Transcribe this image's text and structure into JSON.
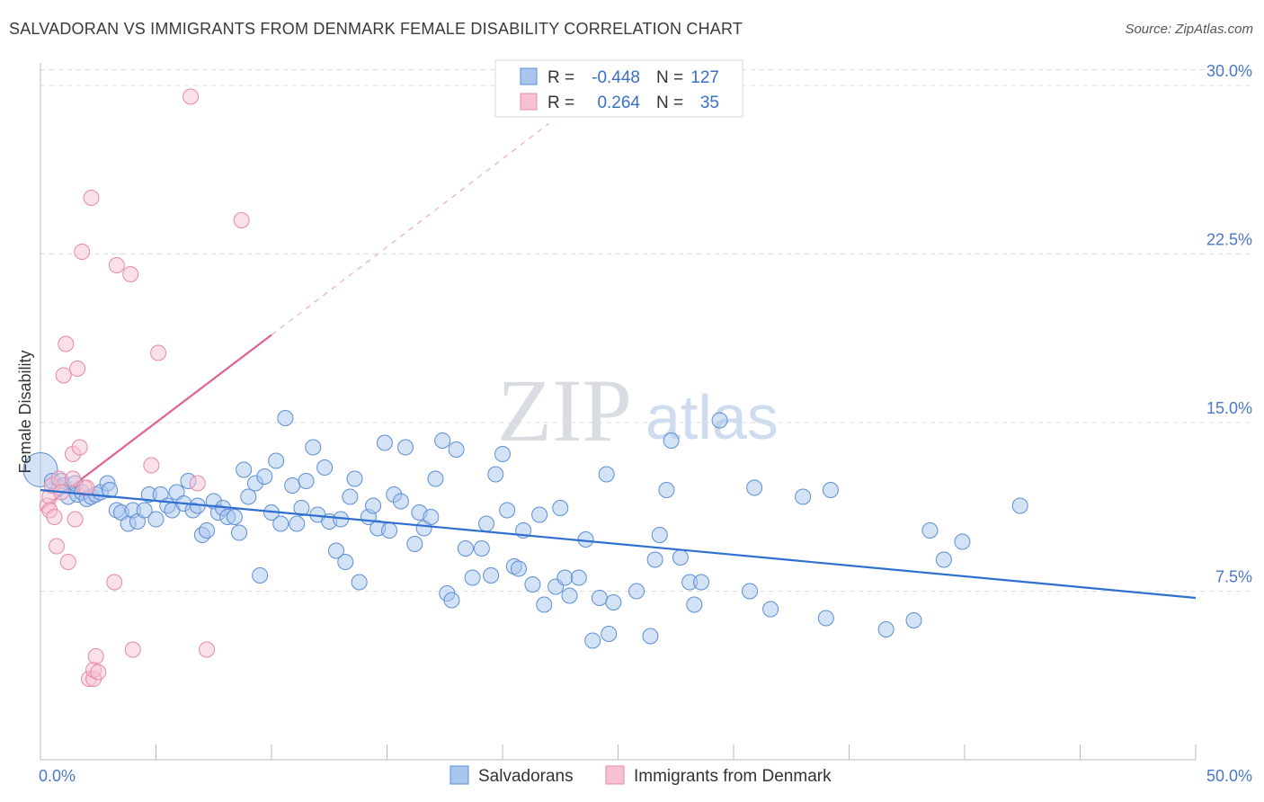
{
  "header": {
    "title": "SALVADORAN VS IMMIGRANTS FROM DENMARK FEMALE DISABILITY CORRELATION CHART",
    "source": "Source: ZipAtlas.com"
  },
  "watermark": {
    "part1": "ZIP",
    "part2": "atlas"
  },
  "colors": {
    "blue_fill": "#a9c6ee",
    "blue_stroke": "#5b8fd6",
    "blue_line": "#2f6fcf",
    "pink_fill": "#f6c2d2",
    "pink_stroke": "#e68aa8",
    "pink_line": "#e0608f",
    "grid": "#dddddd",
    "axis_text": "#4a78c6"
  },
  "legend": {
    "rows": [
      {
        "r_label": "R =",
        "r_value": "-0.448",
        "n_label": "N =",
        "n_value": "127"
      },
      {
        "r_label": "R =",
        "r_value": "0.264",
        "n_label": "N =",
        "n_value": "35"
      }
    ]
  },
  "chart_data": {
    "type": "scatter",
    "title": "SALVADORAN VS IMMIGRANTS FROM DENMARK FEMALE DISABILITY CORRELATION CHART",
    "xlabel": "",
    "ylabel": "Female Disability",
    "xlim": [
      0,
      50
    ],
    "ylim": [
      0,
      31
    ],
    "x_tick_labels": [
      "0.0%",
      "50.0%"
    ],
    "y_ticks": [
      7.5,
      15.0,
      22.5,
      30.0
    ],
    "y_tick_labels": [
      "7.5%",
      "15.0%",
      "22.5%",
      "30.0%"
    ],
    "grid": true,
    "series": [
      {
        "name": "Salvadorans",
        "color": "blue",
        "trend": {
          "x": [
            0,
            50
          ],
          "y": [
            12.0,
            7.2
          ],
          "dashed_extension": false
        },
        "points": [
          [
            0.0,
            12.9
          ],
          [
            0.5,
            12.4
          ],
          [
            0.8,
            12.1
          ],
          [
            0.9,
            12.4
          ],
          [
            1.0,
            12.2
          ],
          [
            1.2,
            11.7
          ],
          [
            1.5,
            12.3
          ],
          [
            1.6,
            11.8
          ],
          [
            1.8,
            11.9
          ],
          [
            2.0,
            11.6
          ],
          [
            2.2,
            11.7
          ],
          [
            2.4,
            11.8
          ],
          [
            2.6,
            11.9
          ],
          [
            2.9,
            12.3
          ],
          [
            3.0,
            12.0
          ],
          [
            3.3,
            11.1
          ],
          [
            3.5,
            11.0
          ],
          [
            3.8,
            10.5
          ],
          [
            4.0,
            11.1
          ],
          [
            4.2,
            10.6
          ],
          [
            4.5,
            11.1
          ],
          [
            4.7,
            11.8
          ],
          [
            5.0,
            10.7
          ],
          [
            5.2,
            11.8
          ],
          [
            5.5,
            11.3
          ],
          [
            5.7,
            11.1
          ],
          [
            5.9,
            11.9
          ],
          [
            6.2,
            11.4
          ],
          [
            6.4,
            12.4
          ],
          [
            6.6,
            11.1
          ],
          [
            6.8,
            11.3
          ],
          [
            7.0,
            10.0
          ],
          [
            7.2,
            10.2
          ],
          [
            7.5,
            11.5
          ],
          [
            7.7,
            11.0
          ],
          [
            7.9,
            11.2
          ],
          [
            8.1,
            10.8
          ],
          [
            8.4,
            10.8
          ],
          [
            8.6,
            10.1
          ],
          [
            8.8,
            12.9
          ],
          [
            9.0,
            11.7
          ],
          [
            9.3,
            12.3
          ],
          [
            9.5,
            8.2
          ],
          [
            9.7,
            12.6
          ],
          [
            10.0,
            11.0
          ],
          [
            10.2,
            13.3
          ],
          [
            10.4,
            10.5
          ],
          [
            10.6,
            15.2
          ],
          [
            10.9,
            12.2
          ],
          [
            11.1,
            10.5
          ],
          [
            11.3,
            11.2
          ],
          [
            11.5,
            12.4
          ],
          [
            11.8,
            13.9
          ],
          [
            12.0,
            10.9
          ],
          [
            12.3,
            13.0
          ],
          [
            12.5,
            10.6
          ],
          [
            12.8,
            9.3
          ],
          [
            13.0,
            10.7
          ],
          [
            13.2,
            8.8
          ],
          [
            13.4,
            11.7
          ],
          [
            13.6,
            12.5
          ],
          [
            13.8,
            7.9
          ],
          [
            14.2,
            10.8
          ],
          [
            14.4,
            11.3
          ],
          [
            14.6,
            10.3
          ],
          [
            14.9,
            14.1
          ],
          [
            15.1,
            10.2
          ],
          [
            15.3,
            11.8
          ],
          [
            15.6,
            11.5
          ],
          [
            15.8,
            13.9
          ],
          [
            16.2,
            9.6
          ],
          [
            16.4,
            11.0
          ],
          [
            16.6,
            10.3
          ],
          [
            16.9,
            10.8
          ],
          [
            17.1,
            12.5
          ],
          [
            17.4,
            14.2
          ],
          [
            17.6,
            7.4
          ],
          [
            17.8,
            7.1
          ],
          [
            18.0,
            13.8
          ],
          [
            18.4,
            9.4
          ],
          [
            18.7,
            8.1
          ],
          [
            19.1,
            9.4
          ],
          [
            19.3,
            10.5
          ],
          [
            19.5,
            8.2
          ],
          [
            19.7,
            12.7
          ],
          [
            20.0,
            13.6
          ],
          [
            20.2,
            11.1
          ],
          [
            20.5,
            8.6
          ],
          [
            20.7,
            8.5
          ],
          [
            20.9,
            10.2
          ],
          [
            21.3,
            7.8
          ],
          [
            21.6,
            10.9
          ],
          [
            21.8,
            6.9
          ],
          [
            22.3,
            7.7
          ],
          [
            22.5,
            11.2
          ],
          [
            22.7,
            8.1
          ],
          [
            23.3,
            8.1
          ],
          [
            23.6,
            9.8
          ],
          [
            23.9,
            5.3
          ],
          [
            24.2,
            7.2
          ],
          [
            24.5,
            12.7
          ],
          [
            24.6,
            5.6
          ],
          [
            24.8,
            7.0
          ],
          [
            25.8,
            7.5
          ],
          [
            26.4,
            5.5
          ],
          [
            26.6,
            8.9
          ],
          [
            26.8,
            10.0
          ],
          [
            27.1,
            12.0
          ],
          [
            27.3,
            14.2
          ],
          [
            27.7,
            9.0
          ],
          [
            28.1,
            7.9
          ],
          [
            28.3,
            6.9
          ],
          [
            28.6,
            7.9
          ],
          [
            29.4,
            15.1
          ],
          [
            30.7,
            7.5
          ],
          [
            30.9,
            12.1
          ],
          [
            31.6,
            6.7
          ],
          [
            33.0,
            11.7
          ],
          [
            34.0,
            6.3
          ],
          [
            34.2,
            12.0
          ],
          [
            36.6,
            5.8
          ],
          [
            37.8,
            6.2
          ],
          [
            38.5,
            10.2
          ],
          [
            39.1,
            8.9
          ],
          [
            39.9,
            9.7
          ],
          [
            42.4,
            11.3
          ],
          [
            22.9,
            7.3
          ]
        ]
      },
      {
        "name": "Immigrants from Denmark",
        "color": "pink",
        "trend": {
          "x": [
            0,
            10
          ],
          "y": [
            11.1,
            18.9
          ],
          "dashed_extension": true,
          "dashed_to": [
            22,
            28.3
          ]
        },
        "points": [
          [
            0.3,
            11.3
          ],
          [
            0.4,
            11.7
          ],
          [
            0.4,
            11.1
          ],
          [
            0.6,
            10.8
          ],
          [
            0.5,
            12.2
          ],
          [
            0.7,
            9.5
          ],
          [
            0.8,
            12.5
          ],
          [
            0.9,
            11.9
          ],
          [
            1.0,
            17.1
          ],
          [
            1.1,
            18.5
          ],
          [
            1.2,
            8.8
          ],
          [
            1.4,
            12.5
          ],
          [
            1.5,
            10.7
          ],
          [
            1.4,
            13.6
          ],
          [
            1.6,
            17.4
          ],
          [
            1.7,
            13.9
          ],
          [
            1.8,
            22.6
          ],
          [
            1.9,
            12.1
          ],
          [
            2.0,
            12.1
          ],
          [
            2.1,
            3.6
          ],
          [
            2.2,
            25.0
          ],
          [
            2.3,
            3.6
          ],
          [
            2.3,
            4.0
          ],
          [
            2.4,
            4.6
          ],
          [
            2.5,
            3.9
          ],
          [
            3.2,
            7.9
          ],
          [
            3.3,
            22.0
          ],
          [
            3.9,
            21.6
          ],
          [
            4.0,
            4.9
          ],
          [
            4.8,
            13.1
          ],
          [
            5.1,
            18.1
          ],
          [
            6.5,
            29.5
          ],
          [
            6.8,
            12.3
          ],
          [
            7.2,
            4.9
          ],
          [
            8.7,
            24.0
          ]
        ]
      }
    ]
  },
  "bottom_legend": {
    "items": [
      {
        "label": "Salvadorans"
      },
      {
        "label": "Immigrants from Denmark"
      }
    ]
  }
}
